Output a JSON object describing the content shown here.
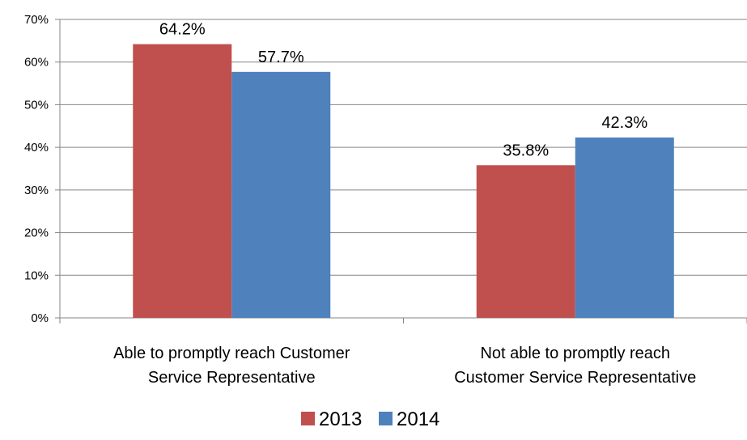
{
  "chart_data": {
    "type": "bar",
    "categories": [
      [
        "Able to promptly reach Customer",
        "Service Representative"
      ],
      [
        "Not able to promptly reach",
        "Customer Service Representative"
      ]
    ],
    "series": [
      {
        "name": "2013",
        "color": "#c0504d",
        "values": [
          64.2,
          35.8
        ]
      },
      {
        "name": "2014",
        "color": "#4f81bd",
        "values": [
          57.7,
          42.3
        ]
      }
    ],
    "data_labels": [
      [
        "64.2%",
        "35.8%"
      ],
      [
        "57.7%",
        "42.3%"
      ]
    ],
    "ylim": [
      0,
      70
    ],
    "yticks": [
      0,
      10,
      20,
      30,
      40,
      50,
      60,
      70
    ],
    "ytick_labels": [
      "0%",
      "10%",
      "20%",
      "30%",
      "40%",
      "50%",
      "60%",
      "70%"
    ],
    "grid": true,
    "legend_position": "bottom",
    "title": "",
    "xlabel": "",
    "ylabel": ""
  }
}
